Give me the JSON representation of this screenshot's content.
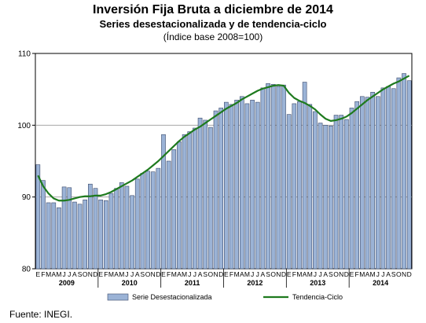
{
  "title": "Inversión Fija Bruta a diciembre de 2014",
  "subtitle": "Series desestacionalizada y de tendencia-ciclo",
  "index_note": "(Índice base 2008=100)",
  "source": "Fuente: INEGI.",
  "chart_data": {
    "type": "bar",
    "ylim": [
      80,
      110
    ],
    "yticks": [
      80,
      90,
      100,
      110
    ],
    "grid": true,
    "legend": "bottom",
    "month_letters": [
      "E",
      "F",
      "M",
      "A",
      "M",
      "J",
      "J",
      "A",
      "S",
      "O",
      "N",
      "D"
    ],
    "years": [
      "2009",
      "2010",
      "2011",
      "2012",
      "2013",
      "2014"
    ],
    "colors": {
      "bar": "#9bb3d6",
      "bar_edge": "#3b4a6b",
      "trend": "#1e7a1e",
      "grid": "#9a9a9a"
    },
    "series": [
      {
        "name": "Serie Desestacionalizada",
        "type": "bar",
        "values": [
          94.5,
          92.3,
          89.2,
          89.2,
          88.5,
          91.4,
          91.3,
          89.3,
          89.0,
          89.6,
          91.8,
          91.2,
          89.6,
          89.5,
          90.5,
          91.2,
          92.0,
          91.5,
          90.2,
          92.5,
          93.3,
          93.6,
          93.5,
          94.0,
          98.7,
          95.0,
          96.6,
          97.7,
          98.7,
          99.1,
          99.6,
          101.0,
          100.7,
          99.7,
          102.0,
          102.4,
          103.2,
          102.9,
          103.5,
          104.0,
          103.0,
          103.5,
          103.2,
          105.2,
          105.8,
          105.7,
          105.4,
          105.6,
          101.5,
          103.0,
          103.3,
          106.0,
          102.9,
          101.9,
          100.3,
          100.0,
          99.9,
          101.4,
          101.4,
          100.8,
          102.4,
          103.3,
          104.0,
          103.9,
          104.6,
          104.0,
          105.2,
          105.4,
          105.1,
          106.6,
          107.2,
          106.2
        ]
      },
      {
        "name": "Tendencia-Ciclo",
        "type": "line",
        "values": [
          93.0,
          91.5,
          90.5,
          89.8,
          89.5,
          89.5,
          89.6,
          89.8,
          90.0,
          90.1,
          90.1,
          90.2,
          90.2,
          90.4,
          90.7,
          91.1,
          91.5,
          91.9,
          92.3,
          92.8,
          93.3,
          93.8,
          94.4,
          95.0,
          95.7,
          96.4,
          97.1,
          97.8,
          98.4,
          98.9,
          99.4,
          99.8,
          100.3,
          100.8,
          101.3,
          101.8,
          102.3,
          102.7,
          103.1,
          103.6,
          104.0,
          104.4,
          104.8,
          105.1,
          105.3,
          105.5,
          105.6,
          105.5,
          104.5,
          103.8,
          103.4,
          103.1,
          102.7,
          102.2,
          101.5,
          100.9,
          100.6,
          100.7,
          100.9,
          101.2,
          101.7,
          102.3,
          102.9,
          103.5,
          104.0,
          104.5,
          105.0,
          105.4,
          105.8,
          106.1,
          106.5,
          106.9
        ]
      }
    ]
  }
}
